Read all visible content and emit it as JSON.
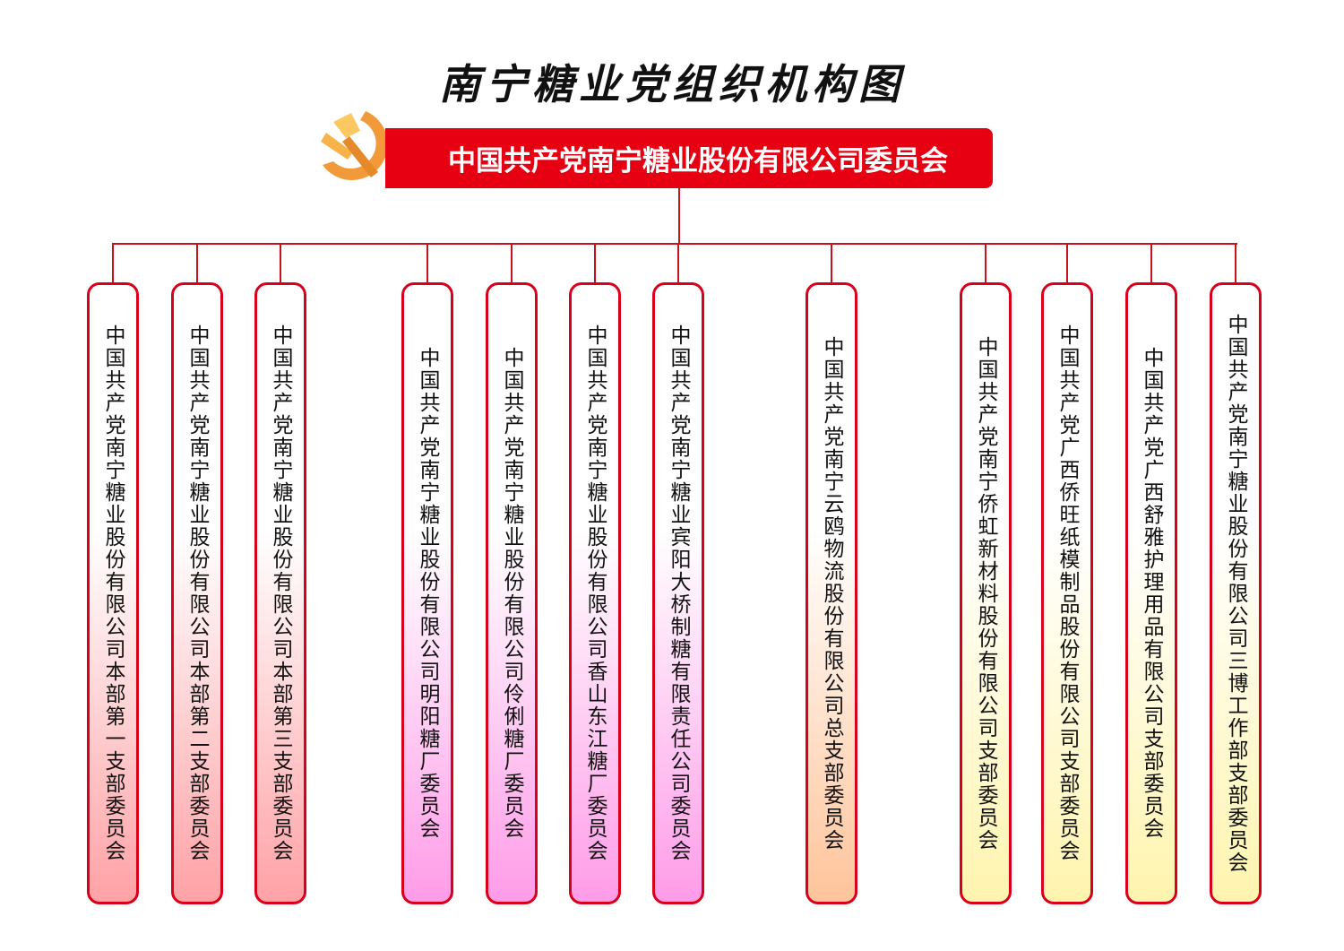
{
  "title": "南宁糖业党组织机构图",
  "root": "中国共产党南宁糖业股份有限公司委员会",
  "colors": {
    "primary_red": "#e60012",
    "group1": "#ffa2a6",
    "group2": "#ff9ce8",
    "group3": "#ffc49a",
    "group4": "#fff4ae"
  },
  "branches": [
    "中国共产党南宁糖业股份有限公司本部第一支部委员会",
    "中国共产党南宁糖业股份有限公司本部第二支部委员会",
    "中国共产党南宁糖业股份有限公司本部第三支部委员会",
    "中国共产党南宁糖业股份有限公司明阳糖厂委员会",
    "中国共产党南宁糖业股份有限公司伶俐糖厂委员会",
    "中国共产党南宁糖业股份有限公司香山东江糖厂委员会",
    "中国共产党南宁糖业宾阳大桥制糖有限责任公司委员会",
    "中国共产党南宁云鸥物流股份有限公司总支部委员会",
    "中国共产党南宁侨虹新材料股份有限公司支部委员会",
    "中国共产党广西侨旺纸模制品股份有限公司支部委员会",
    "中国共产党广西舒雅护理用品有限公司支部委员会",
    "中国共产党南宁糖业股份有限公司三博工作部支部委员会"
  ]
}
